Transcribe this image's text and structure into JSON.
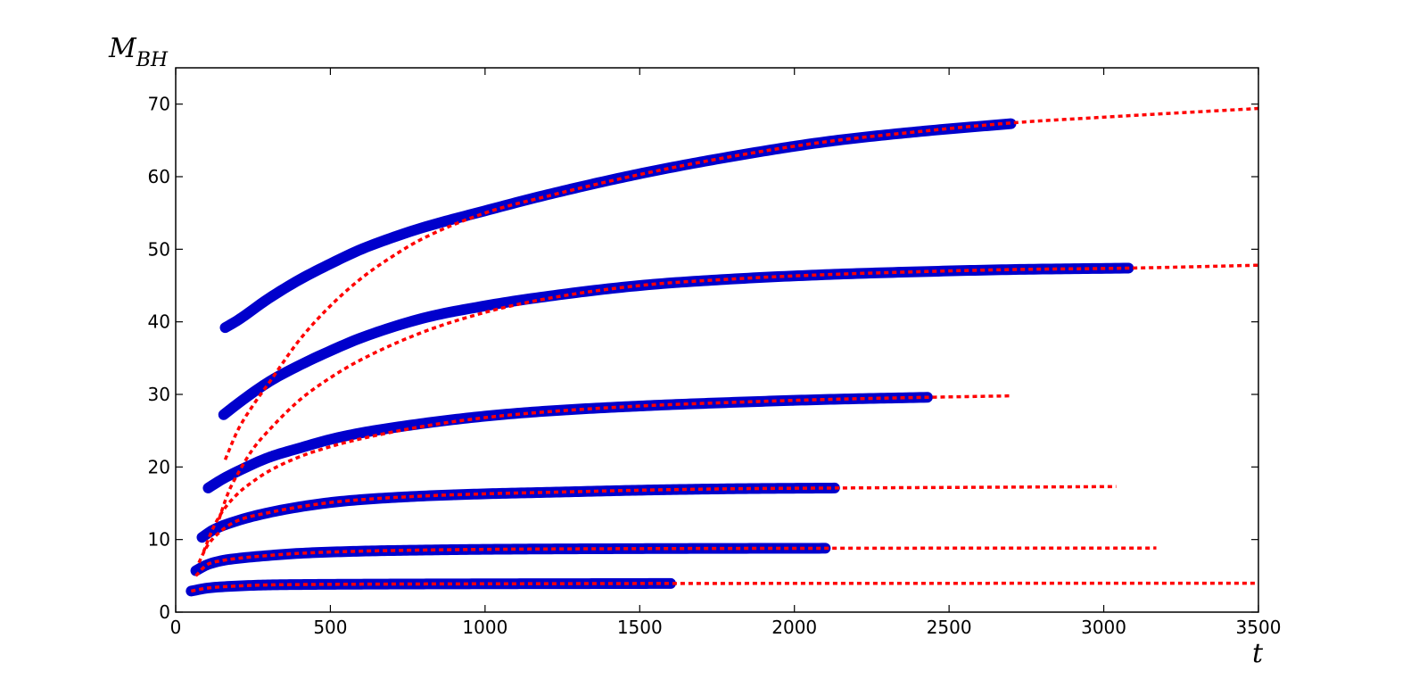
{
  "chart_data": {
    "type": "line",
    "title": "",
    "xlabel": "t",
    "ylabel_main": "M",
    "ylabel_sub": "BH",
    "xlim": [
      0,
      3500
    ],
    "ylim": [
      0,
      75
    ],
    "xticks": [
      0,
      500,
      1000,
      1500,
      2000,
      2500,
      3000,
      3500
    ],
    "yticks": [
      0,
      10,
      20,
      30,
      40,
      50,
      60,
      70
    ],
    "grid": false,
    "legend": "none",
    "colors": {
      "data": "#0000cc",
      "fit": "#ff0000"
    },
    "series": [
      {
        "kind": "data",
        "x": [
          50,
          100,
          200,
          300,
          400,
          600,
          800,
          1000,
          1200,
          1400,
          1600
        ],
        "y": [
          2.9,
          3.3,
          3.6,
          3.75,
          3.8,
          3.85,
          3.88,
          3.9,
          3.92,
          3.93,
          3.95
        ]
      },
      {
        "kind": "fit",
        "x": [
          50,
          100,
          200,
          300,
          400,
          600,
          800,
          1000,
          1600,
          2000,
          2500,
          3000,
          3500
        ],
        "y": [
          2.9,
          3.3,
          3.6,
          3.75,
          3.8,
          3.85,
          3.88,
          3.9,
          3.95,
          3.96,
          3.97,
          3.98,
          3.98
        ]
      },
      {
        "kind": "data",
        "x": [
          65,
          100,
          150,
          200,
          300,
          400,
          600,
          800,
          1000,
          1500,
          2100
        ],
        "y": [
          5.7,
          6.5,
          7.1,
          7.4,
          7.8,
          8.1,
          8.4,
          8.55,
          8.65,
          8.75,
          8.8
        ]
      },
      {
        "kind": "fit",
        "x": [
          65,
          100,
          150,
          200,
          300,
          400,
          600,
          800,
          1000,
          1500,
          2100,
          2600,
          3170
        ],
        "y": [
          5.0,
          6.5,
          7.1,
          7.4,
          7.8,
          8.1,
          8.4,
          8.55,
          8.65,
          8.75,
          8.8,
          8.82,
          8.83
        ]
      },
      {
        "kind": "data",
        "x": [
          85,
          120,
          200,
          300,
          400,
          500,
          600,
          800,
          1000,
          1200,
          1500,
          1800,
          2130
        ],
        "y": [
          10.3,
          11.3,
          12.6,
          13.7,
          14.5,
          15.1,
          15.5,
          16.0,
          16.3,
          16.5,
          16.8,
          17.0,
          17.1
        ]
      },
      {
        "kind": "fit",
        "x": [
          75,
          100,
          150,
          200,
          300,
          400,
          500,
          600,
          800,
          1000,
          1200,
          1500,
          1800,
          2130,
          2600,
          3040
        ],
        "y": [
          6.8,
          9.0,
          11.3,
          12.6,
          13.7,
          14.5,
          15.1,
          15.5,
          16.0,
          16.3,
          16.5,
          16.8,
          17.0,
          17.1,
          17.2,
          17.3
        ]
      },
      {
        "kind": "data",
        "x": [
          105,
          150,
          200,
          300,
          400,
          500,
          600,
          800,
          1000,
          1200,
          1500,
          1800,
          2100,
          2430
        ],
        "y": [
          17.1,
          18.3,
          19.4,
          21.3,
          22.6,
          23.8,
          24.7,
          26.0,
          27.0,
          27.7,
          28.4,
          28.9,
          29.3,
          29.6
        ]
      },
      {
        "kind": "fit",
        "x": [
          90,
          120,
          150,
          200,
          250,
          300,
          400,
          500,
          600,
          800,
          1000,
          1200,
          1500,
          1800,
          2100,
          2430,
          2700
        ],
        "y": [
          8.3,
          11.5,
          13.8,
          16.3,
          18.0,
          19.4,
          21.4,
          22.8,
          23.9,
          25.6,
          26.8,
          27.6,
          28.4,
          28.9,
          29.3,
          29.6,
          29.8
        ]
      },
      {
        "kind": "data",
        "x": [
          155,
          200,
          300,
          400,
          500,
          600,
          800,
          1000,
          1200,
          1500,
          1800,
          2100,
          2400,
          2700,
          3080
        ],
        "y": [
          27.2,
          28.7,
          31.7,
          34.0,
          36.0,
          37.8,
          40.5,
          42.2,
          43.5,
          45.0,
          45.9,
          46.5,
          46.9,
          47.2,
          47.4
        ]
      },
      {
        "kind": "fit",
        "x": [
          140,
          170,
          200,
          250,
          300,
          400,
          500,
          600,
          800,
          1000,
          1200,
          1500,
          1800,
          2100,
          2400,
          2700,
          3080,
          3500
        ],
        "y": [
          12.8,
          16.5,
          19.0,
          22.5,
          25.0,
          29.2,
          32.3,
          34.8,
          38.6,
          41.3,
          43.2,
          45.0,
          45.9,
          46.5,
          46.9,
          47.2,
          47.4,
          47.8
        ]
      },
      {
        "kind": "data",
        "x": [
          160,
          200,
          300,
          400,
          500,
          600,
          700,
          800,
          1000,
          1200,
          1500,
          1800,
          2100,
          2400,
          2700
        ],
        "y": [
          39.2,
          40.2,
          43.2,
          45.8,
          48.0,
          50.0,
          51.6,
          53.0,
          55.3,
          57.5,
          60.4,
          62.8,
          64.8,
          66.2,
          67.3
        ]
      },
      {
        "kind": "fit",
        "x": [
          160,
          200,
          250,
          300,
          400,
          500,
          600,
          700,
          800,
          1000,
          1200,
          1500,
          1800,
          2100,
          2400,
          2700,
          3000,
          3500
        ],
        "y": [
          21.0,
          25.0,
          28.5,
          31.5,
          37.5,
          42.2,
          46.0,
          49.0,
          51.5,
          55.0,
          57.3,
          60.3,
          62.8,
          64.8,
          66.2,
          67.4,
          68.2,
          69.4
        ]
      }
    ]
  }
}
